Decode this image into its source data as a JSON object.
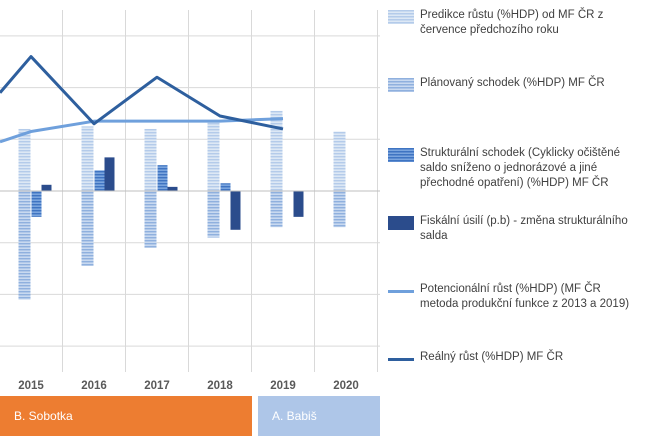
{
  "chart_data": {
    "type": "bar",
    "x": [
      "2015",
      "2016",
      "2017",
      "2018",
      "2019",
      "2020"
    ],
    "ylim": [
      -3.5,
      3.5
    ],
    "grid": true,
    "legend_position": "right",
    "series": [
      {
        "name": "Predikce růstu (%HDP) od MF ČR z července předchozího roku",
        "type": "bar",
        "color": "#c5d7ee",
        "pattern": "hstripes-light",
        "values": [
          1.2,
          1.25,
          1.2,
          1.35,
          1.55,
          1.15
        ]
      },
      {
        "name": "Plánovaný schodek (%HDP) MF ČR",
        "type": "bar",
        "color": "#a9c3e6",
        "pattern": "hstripes-mid",
        "values": [
          -2.1,
          -1.45,
          -1.1,
          -0.9,
          -0.7,
          -0.7
        ]
      },
      {
        "name": "Strukturální schodek (Cyklicky očištěné saldo sníženo o jednorázové a jiné přechodné opatření) (%HDP) MF ČR",
        "type": "bar",
        "color": "#5b8ed6",
        "pattern": "hstripes-dark",
        "values": [
          -0.5,
          0.4,
          0.5,
          0.15,
          null,
          null
        ]
      },
      {
        "name": "Fiskální úsilí (p.b) - změna strukturálního salda",
        "type": "bar",
        "color": "#2b4c8c",
        "pattern": "solid",
        "values": [
          0.12,
          0.65,
          0.08,
          -0.75,
          -0.5,
          null
        ]
      },
      {
        "name": "Potencionální růst (%HDP) (MF ČR metoda produkční funkce z 2013 a 2019)",
        "type": "line",
        "color": "#6fa0dc",
        "values": [
          1.15,
          1.35,
          1.35,
          1.35,
          1.4,
          null
        ]
      },
      {
        "name": "Reálný růst (%HDP) MF ČR",
        "type": "line",
        "color": "#2e5f9e",
        "values": [
          2.6,
          1.3,
          2.2,
          1.45,
          1.2,
          null
        ]
      }
    ],
    "start_value": 1.9,
    "periods": [
      {
        "label": "B. Sobotka",
        "from": "2015",
        "to": "2018",
        "color": "#ed7d31"
      },
      {
        "label": "A. Babiš",
        "from": "2019",
        "to": "2020",
        "color": "#aec6e8"
      }
    ]
  }
}
